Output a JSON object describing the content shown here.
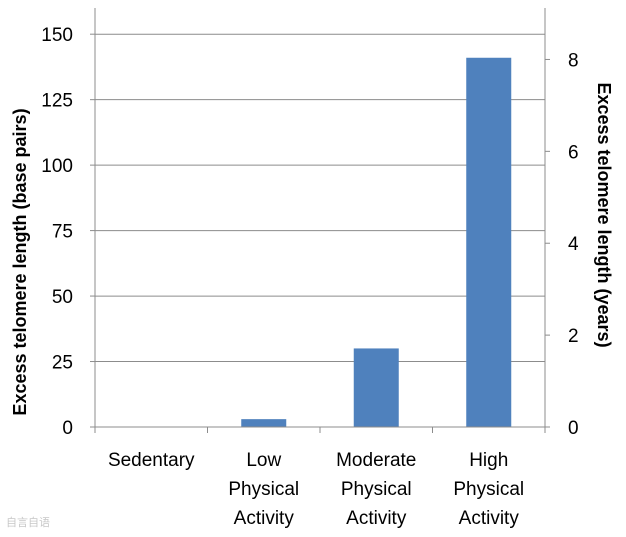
{
  "chart_data": {
    "type": "bar",
    "categories": [
      [
        "Sedentary"
      ],
      [
        "Low",
        "Physical",
        "Activity"
      ],
      [
        "Moderate",
        "Physical",
        "Activity"
      ],
      [
        "High",
        "Physical",
        "Activity"
      ]
    ],
    "values": [
      0,
      3,
      30,
      141
    ],
    "ylabel": "Excess telomere length (base pairs)",
    "y2label": "Excess telomere length (years)",
    "ylim": [
      0,
      160
    ],
    "y_ticks": [
      0,
      25,
      50,
      75,
      100,
      125,
      150
    ],
    "y2lim": [
      0,
      9.12
    ],
    "y2_ticks": [
      0,
      2,
      4,
      6,
      8
    ],
    "grid": true,
    "legend": "none",
    "colors": {
      "bar": "#4f81bd",
      "grid": "#8c8c8c",
      "axis": "#8c8c8c"
    }
  },
  "watermark": "自言自语"
}
